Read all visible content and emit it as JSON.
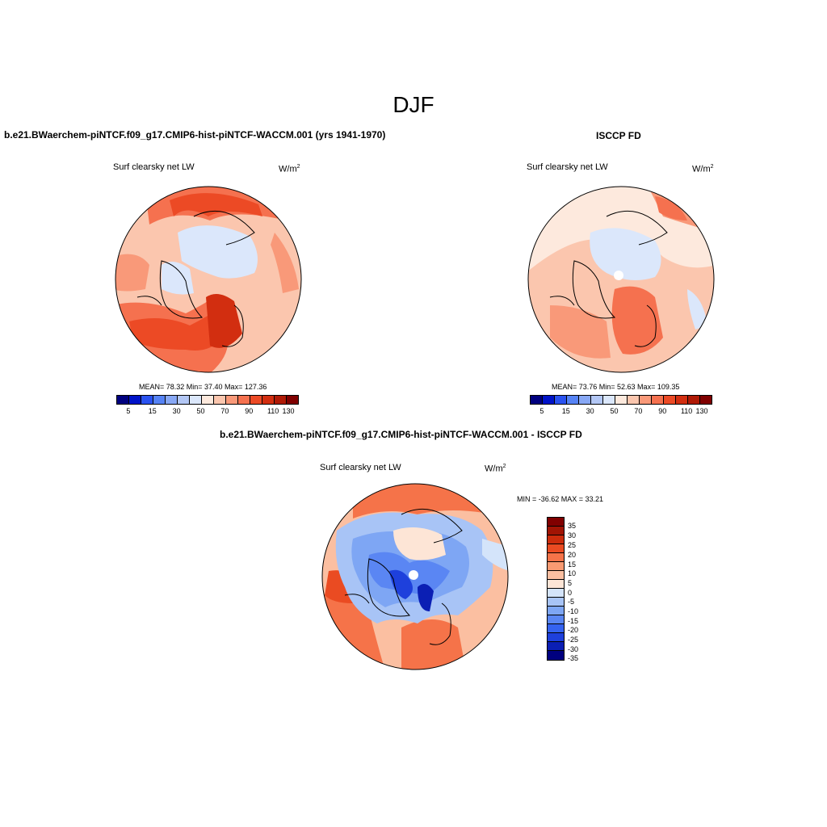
{
  "title": "DJF",
  "units_base": "W/m",
  "units_sup": "2",
  "palette": [
    "#00007f",
    "#0013c8",
    "#2a52f0",
    "#5683f5",
    "#88a8f5",
    "#b3c7f5",
    "#dbe7fb",
    "#fde9dd",
    "#fbc6ae",
    "#f99979",
    "#f5714f",
    "#ec4a25",
    "#d22e10",
    "#b01a06",
    "#800000"
  ],
  "diff_palette": [
    "#00007f",
    "#0b1fb4",
    "#1e40dc",
    "#3563f0",
    "#5a86f3",
    "#7ea6f4",
    "#a8c4f6",
    "#d4e4fa",
    "#fde5d6",
    "#fbbfa1",
    "#f99a72",
    "#f57349",
    "#ea4b22",
    "#cc2c0c",
    "#a11404",
    "#800000"
  ],
  "top_left": {
    "title": "b.e21.BWaerchem-piNTCF.f09_g17.CMIP6-hist-piNTCF-WACCM.001 (yrs 1941-1970)",
    "var_name": "Surf clearsky net LW",
    "stats": "MEAN=  78.32  Min=  37.40  Max= 127.36",
    "colorbar_labels": [
      "5",
      "15",
      "30",
      "50",
      "70",
      "90",
      "110",
      "130"
    ]
  },
  "top_right": {
    "title": "ISCCP FD",
    "var_name": "Surf clearsky net LW",
    "stats": "MEAN=  73.76  Min=  52.63  Max= 109.35",
    "colorbar_labels": [
      "5",
      "15",
      "30",
      "50",
      "70",
      "90",
      "110",
      "130"
    ]
  },
  "bottom": {
    "title": "b.e21.BWaerchem-piNTCF.f09_g17.CMIP6-hist-piNTCF-WACCM.001 - ISCCP FD",
    "var_name": "Surf clearsky net LW",
    "minmax": "MIN = -36.62 MAX =  33.21",
    "colorbar_labels": [
      "35",
      "30",
      "25",
      "20",
      "15",
      "10",
      "5",
      "0",
      "-5",
      "-10",
      "-15",
      "-20",
      "-25",
      "-30",
      "-35"
    ]
  }
}
